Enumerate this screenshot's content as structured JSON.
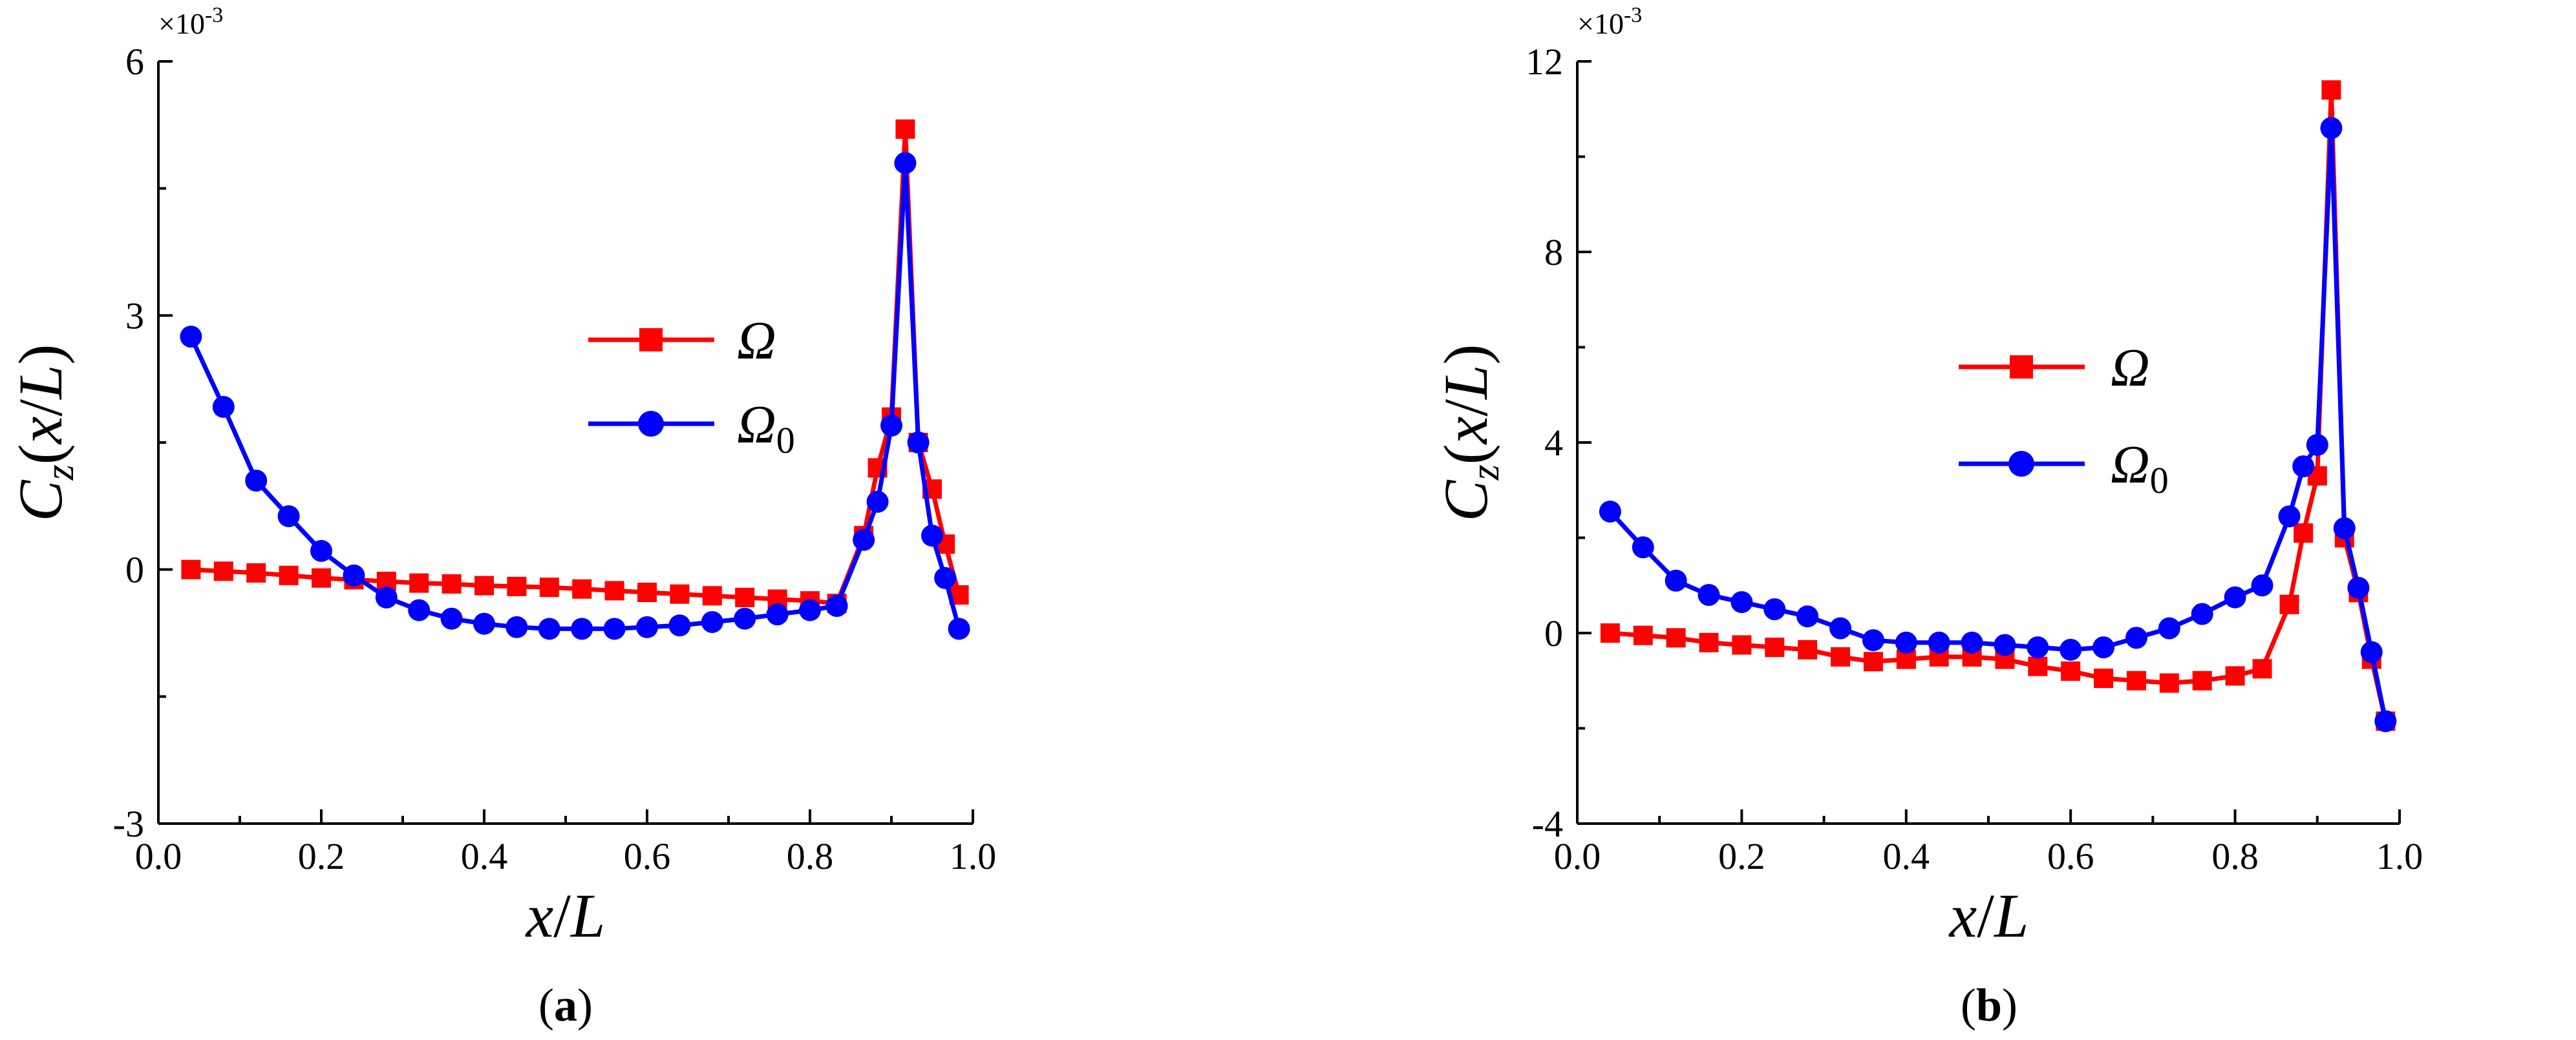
{
  "chart_data": [
    {
      "type": "line",
      "panel": "a",
      "caption": {
        "open": "(",
        "letter": "a",
        "close": ")"
      },
      "xlabel": "x/L",
      "ylabel": "C_z(x/L)",
      "xlim": [
        0,
        1
      ],
      "ylim": [
        -3,
        6
      ],
      "multiplier": "×10",
      "multiplier_exp": "-3",
      "xticks": [
        "0.0",
        "0.2",
        "0.4",
        "0.6",
        "0.8",
        "1.0"
      ],
      "yticks": [
        "-3",
        "0",
        "3",
        "6"
      ],
      "legend": {
        "placement": "center",
        "entries": [
          {
            "name": "Ω",
            "sub": ""
          },
          {
            "name": "Ω",
            "sub": "0"
          }
        ]
      },
      "series": [
        {
          "name": "Ω",
          "color": "#ff0000",
          "marker": "square",
          "x": [
            0.04,
            0.08,
            0.12,
            0.16,
            0.2,
            0.24,
            0.28,
            0.32,
            0.36,
            0.4,
            0.44,
            0.48,
            0.52,
            0.56,
            0.6,
            0.64,
            0.68,
            0.72,
            0.76,
            0.8,
            0.833,
            0.866,
            0.883,
            0.9,
            0.917,
            0.933,
            0.95,
            0.966,
            0.983
          ],
          "y": [
            0.0,
            -0.02,
            -0.04,
            -0.07,
            -0.1,
            -0.12,
            -0.14,
            -0.16,
            -0.17,
            -0.19,
            -0.2,
            -0.21,
            -0.23,
            -0.25,
            -0.27,
            -0.29,
            -0.31,
            -0.33,
            -0.35,
            -0.37,
            -0.4,
            0.4,
            1.2,
            1.8,
            5.2,
            1.5,
            0.95,
            0.3,
            -0.3
          ]
        },
        {
          "name": "Ω0",
          "color": "#0000ff",
          "marker": "circle",
          "x": [
            0.04,
            0.08,
            0.12,
            0.16,
            0.2,
            0.24,
            0.28,
            0.32,
            0.36,
            0.4,
            0.44,
            0.48,
            0.52,
            0.56,
            0.6,
            0.64,
            0.68,
            0.72,
            0.76,
            0.8,
            0.833,
            0.866,
            0.883,
            0.9,
            0.917,
            0.933,
            0.95,
            0.966,
            0.983
          ],
          "y": [
            2.75,
            1.92,
            1.05,
            0.63,
            0.22,
            -0.07,
            -0.33,
            -0.48,
            -0.58,
            -0.64,
            -0.68,
            -0.7,
            -0.7,
            -0.7,
            -0.68,
            -0.66,
            -0.62,
            -0.58,
            -0.53,
            -0.48,
            -0.43,
            0.35,
            0.8,
            1.7,
            4.8,
            1.5,
            0.4,
            -0.1,
            -0.7
          ]
        }
      ]
    },
    {
      "type": "line",
      "panel": "b",
      "caption": {
        "open": "(",
        "letter": "b",
        "close": ")"
      },
      "xlabel": "x/L",
      "ylabel": "C_z(x/L)",
      "xlim": [
        0,
        1
      ],
      "ylim": [
        -4,
        12
      ],
      "multiplier": "×10",
      "multiplier_exp": "-3",
      "xticks": [
        "0.0",
        "0.2",
        "0.4",
        "0.6",
        "0.8",
        "1.0"
      ],
      "yticks": [
        "-4",
        "0",
        "4",
        "8",
        "12"
      ],
      "legend": {
        "placement": "center-left",
        "entries": [
          {
            "name": "Ω",
            "sub": ""
          },
          {
            "name": "Ω",
            "sub": "0"
          }
        ]
      },
      "series": [
        {
          "name": "Ω",
          "color": "#ff0000",
          "marker": "square",
          "x": [
            0.04,
            0.08,
            0.12,
            0.16,
            0.2,
            0.24,
            0.28,
            0.32,
            0.36,
            0.4,
            0.44,
            0.48,
            0.52,
            0.56,
            0.6,
            0.64,
            0.68,
            0.72,
            0.76,
            0.8,
            0.833,
            0.866,
            0.883,
            0.9,
            0.917,
            0.933,
            0.95,
            0.966,
            0.983
          ],
          "y": [
            0.0,
            -0.05,
            -0.1,
            -0.2,
            -0.25,
            -0.3,
            -0.35,
            -0.5,
            -0.6,
            -0.55,
            -0.5,
            -0.5,
            -0.55,
            -0.7,
            -0.8,
            -0.95,
            -1.0,
            -1.05,
            -1.0,
            -0.9,
            -0.75,
            0.6,
            2.1,
            3.3,
            11.4,
            2.0,
            0.85,
            -0.55,
            -1.85
          ]
        },
        {
          "name": "Ω0",
          "color": "#0000ff",
          "marker": "circle",
          "x": [
            0.04,
            0.08,
            0.12,
            0.16,
            0.2,
            0.24,
            0.28,
            0.32,
            0.36,
            0.4,
            0.44,
            0.48,
            0.52,
            0.56,
            0.6,
            0.64,
            0.68,
            0.72,
            0.76,
            0.8,
            0.833,
            0.866,
            0.883,
            0.9,
            0.917,
            0.933,
            0.95,
            0.966,
            0.983
          ],
          "y": [
            2.55,
            1.8,
            1.1,
            0.8,
            0.65,
            0.5,
            0.35,
            0.1,
            -0.15,
            -0.2,
            -0.2,
            -0.2,
            -0.25,
            -0.3,
            -0.35,
            -0.3,
            -0.1,
            0.1,
            0.4,
            0.75,
            1.0,
            2.45,
            3.5,
            3.95,
            10.6,
            2.2,
            0.95,
            -0.4,
            -1.85
          ]
        }
      ]
    }
  ]
}
